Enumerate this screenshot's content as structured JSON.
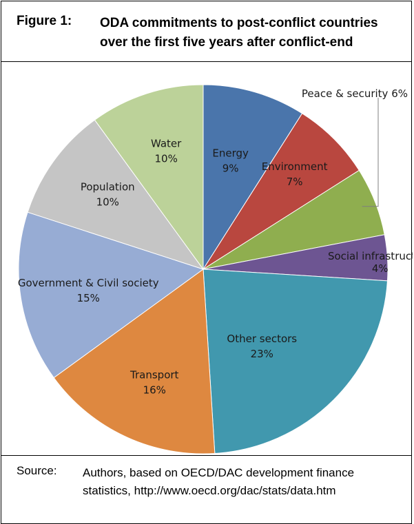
{
  "figure": {
    "label": "Figure 1:",
    "title_line1": "ODA commitments to post-conflict countries",
    "title_line2": "over the first five years after conflict-end"
  },
  "source": {
    "label": "Source:",
    "line1": "Authors, based on OECD/DAC development finance",
    "line2": "statistics, http://www.oecd.org/dac/stats/data.htm"
  },
  "chart_data": {
    "type": "pie",
    "title": "",
    "slices": [
      {
        "label": "Energy",
        "value": 9,
        "value_text": "9%",
        "color": "#4a75ab"
      },
      {
        "label": "Environment",
        "value": 7,
        "value_text": "7%",
        "color": "#b9473f"
      },
      {
        "label": "Peace & security",
        "value": 6,
        "value_text": "6%",
        "color": "#8fae4f"
      },
      {
        "label": "Social infrastructure",
        "value": 4,
        "value_text": "4%",
        "color": "#6d5592"
      },
      {
        "label": "Other sectors",
        "value": 23,
        "value_text": "23%",
        "color": "#4198ae"
      },
      {
        "label": "Transport",
        "value": 16,
        "value_text": "16%",
        "color": "#de8840"
      },
      {
        "label": "Government & Civil society",
        "value": 15,
        "value_text": "15%",
        "color": "#97acd4"
      },
      {
        "label": "Population",
        "value": 10,
        "value_text": "10%",
        "color": "#c5c5c5"
      },
      {
        "label": "Water",
        "value": 10,
        "value_text": "10%",
        "color": "#bcd299"
      }
    ],
    "legend": "none"
  }
}
